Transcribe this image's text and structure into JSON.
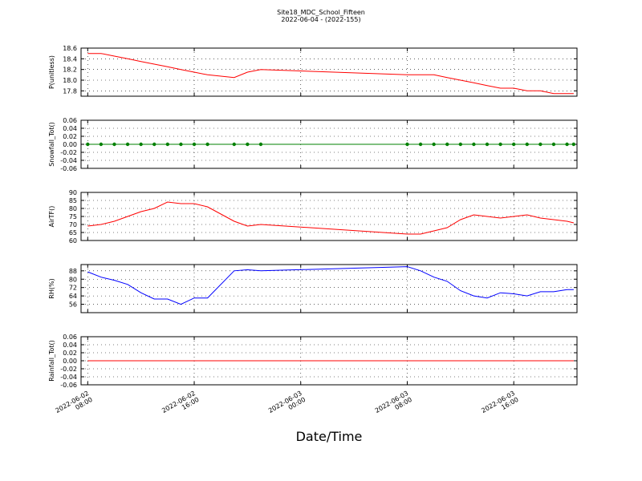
{
  "title": "Site18_MDC_School_Fifteen",
  "subtitle": "2022-06-04 - (2022-155)",
  "xlabel": "Date/Time",
  "xlim": [
    "2022-06-02 07:30",
    "2022-06-03 20:45"
  ],
  "xticks": [
    "2022-06-02 08:00",
    "2022-06-02 16:00",
    "2022-06-03 00:00",
    "2022-06-03 08:00",
    "2022-06-03 16:00"
  ],
  "chart_data": [
    {
      "type": "line",
      "ylabel": "P(unitless)",
      "color": "#ff0000",
      "grid": true,
      "x": [
        "2022-06-02 08:00",
        "2022-06-02 09:00",
        "2022-06-02 10:00",
        "2022-06-02 11:00",
        "2022-06-02 12:00",
        "2022-06-02 13:00",
        "2022-06-02 14:00",
        "2022-06-02 15:00",
        "2022-06-02 16:00",
        "2022-06-02 17:00",
        "2022-06-02 19:00",
        "2022-06-02 20:00",
        "2022-06-02 21:00",
        "2022-06-03 08:00",
        "2022-06-03 09:00",
        "2022-06-03 10:00",
        "2022-06-03 11:00",
        "2022-06-03 12:00",
        "2022-06-03 13:00",
        "2022-06-03 14:00",
        "2022-06-03 15:00",
        "2022-06-03 16:00",
        "2022-06-03 17:00",
        "2022-06-03 18:00",
        "2022-06-03 19:00",
        "2022-06-03 20:00",
        "2022-06-03 20:30"
      ],
      "values": [
        18.5,
        18.5,
        18.45,
        18.4,
        18.35,
        18.3,
        18.25,
        18.2,
        18.15,
        18.1,
        18.05,
        18.15,
        18.2,
        18.1,
        18.1,
        18.1,
        18.05,
        18.0,
        17.95,
        17.9,
        17.85,
        17.85,
        17.8,
        17.8,
        17.75,
        17.75,
        17.75
      ],
      "ylim": [
        17.7,
        18.6
      ],
      "yticks": [
        17.8,
        {
          "value": 18,
          "label": "18.0"
        },
        18.2,
        18.4,
        18.6
      ]
    },
    {
      "type": "line",
      "ylabel": "Snowfall_Tot()",
      "color": "#008000",
      "markers": true,
      "grid": true,
      "x": [
        "2022-06-02 08:00",
        "2022-06-02 09:00",
        "2022-06-02 10:00",
        "2022-06-02 11:00",
        "2022-06-02 12:00",
        "2022-06-02 13:00",
        "2022-06-02 14:00",
        "2022-06-02 15:00",
        "2022-06-02 16:00",
        "2022-06-02 17:00",
        "2022-06-02 19:00",
        "2022-06-02 20:00",
        "2022-06-02 21:00",
        "2022-06-03 08:00",
        "2022-06-03 09:00",
        "2022-06-03 10:00",
        "2022-06-03 11:00",
        "2022-06-03 12:00",
        "2022-06-03 13:00",
        "2022-06-03 14:00",
        "2022-06-03 15:00",
        "2022-06-03 16:00",
        "2022-06-03 17:00",
        "2022-06-03 18:00",
        "2022-06-03 19:00",
        "2022-06-03 20:00",
        "2022-06-03 20:30"
      ],
      "values": [
        0,
        0,
        0,
        0,
        0,
        0,
        0,
        0,
        0,
        0,
        0,
        0,
        0,
        0,
        0,
        0,
        0,
        0,
        0,
        0,
        0,
        0,
        0,
        0,
        0,
        0,
        0
      ],
      "ylim": [
        -0.06,
        0.06
      ],
      "yticks": [
        -0.06,
        -0.04,
        -0.02,
        {
          "value": 0,
          "label": "0.00"
        },
        0.02,
        0.04,
        0.06
      ]
    },
    {
      "type": "line",
      "ylabel": "AirTF()",
      "color": "#ff0000",
      "grid": true,
      "x": [
        "2022-06-02 08:00",
        "2022-06-02 09:00",
        "2022-06-02 10:00",
        "2022-06-02 11:00",
        "2022-06-02 12:00",
        "2022-06-02 13:00",
        "2022-06-02 14:00",
        "2022-06-02 15:00",
        "2022-06-02 16:00",
        "2022-06-02 17:00",
        "2022-06-02 19:00",
        "2022-06-02 20:00",
        "2022-06-02 21:00",
        "2022-06-03 08:00",
        "2022-06-03 09:00",
        "2022-06-03 10:00",
        "2022-06-03 11:00",
        "2022-06-03 12:00",
        "2022-06-03 13:00",
        "2022-06-03 14:00",
        "2022-06-03 15:00",
        "2022-06-03 16:00",
        "2022-06-03 17:00",
        "2022-06-03 18:00",
        "2022-06-03 19:00",
        "2022-06-03 20:00",
        "2022-06-03 20:30"
      ],
      "values": [
        69,
        70,
        72,
        75,
        78,
        80,
        84,
        83,
        83,
        81,
        72,
        69,
        70,
        64,
        64,
        66,
        68,
        73,
        76,
        75,
        74,
        75,
        76,
        74,
        73,
        72,
        71
      ],
      "ylim": [
        60,
        90
      ],
      "yticks": [
        60,
        65,
        70,
        75,
        80,
        85,
        90
      ]
    },
    {
      "type": "line",
      "ylabel": "RH(%)",
      "color": "#0000ff",
      "grid": true,
      "x": [
        "2022-06-02 08:00",
        "2022-06-02 09:00",
        "2022-06-02 10:00",
        "2022-06-02 11:00",
        "2022-06-02 12:00",
        "2022-06-02 13:00",
        "2022-06-02 14:00",
        "2022-06-02 15:00",
        "2022-06-02 16:00",
        "2022-06-02 17:00",
        "2022-06-02 19:00",
        "2022-06-02 20:00",
        "2022-06-02 21:00",
        "2022-06-03 08:00",
        "2022-06-03 09:00",
        "2022-06-03 10:00",
        "2022-06-03 11:00",
        "2022-06-03 12:00",
        "2022-06-03 13:00",
        "2022-06-03 14:00",
        "2022-06-03 15:00",
        "2022-06-03 16:00",
        "2022-06-03 17:00",
        "2022-06-03 18:00",
        "2022-06-03 19:00",
        "2022-06-03 20:00",
        "2022-06-03 20:30"
      ],
      "values": [
        87,
        82,
        79,
        75,
        67,
        61,
        61,
        56,
        62,
        62,
        88,
        89,
        88,
        92,
        88,
        82,
        78,
        69,
        64,
        62,
        67,
        66,
        64,
        68,
        68,
        70,
        70
      ],
      "ylim": [
        48,
        94
      ],
      "yticks": [
        56,
        64,
        72,
        80,
        88
      ]
    },
    {
      "type": "line",
      "ylabel": "Rainfall_Tot()",
      "color": "#ff0000",
      "grid": true,
      "x": [
        "2022-06-02 08:00",
        "2022-06-02 09:00",
        "2022-06-02 10:00",
        "2022-06-02 11:00",
        "2022-06-02 12:00",
        "2022-06-02 13:00",
        "2022-06-02 14:00",
        "2022-06-02 15:00",
        "2022-06-02 16:00",
        "2022-06-02 17:00",
        "2022-06-02 19:00",
        "2022-06-02 20:00",
        "2022-06-02 21:00",
        "2022-06-03 08:00",
        "2022-06-03 09:00",
        "2022-06-03 10:00",
        "2022-06-03 11:00",
        "2022-06-03 12:00",
        "2022-06-03 13:00",
        "2022-06-03 14:00",
        "2022-06-03 15:00",
        "2022-06-03 16:00",
        "2022-06-03 17:00",
        "2022-06-03 18:00",
        "2022-06-03 19:00",
        "2022-06-03 20:00",
        "2022-06-03 20:30"
      ],
      "values": [
        0,
        0,
        0,
        0,
        0,
        0,
        0,
        0,
        0,
        0,
        0,
        0,
        0,
        0,
        0,
        0,
        0,
        0,
        0,
        0,
        0,
        0,
        0,
        0,
        0,
        0,
        0
      ],
      "ylim": [
        -0.06,
        0.06
      ],
      "yticks": [
        -0.06,
        -0.04,
        -0.02,
        {
          "value": 0,
          "label": "0.00"
        },
        0.02,
        0.04,
        0.06
      ]
    }
  ]
}
